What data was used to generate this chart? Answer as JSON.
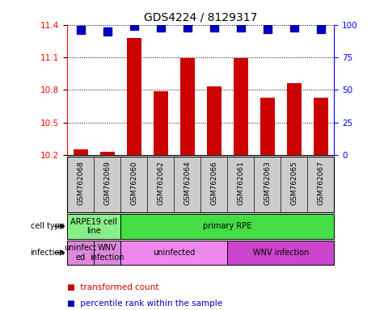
{
  "title": "GDS4224 / 8129317",
  "samples": [
    "GSM762068",
    "GSM762069",
    "GSM762060",
    "GSM762062",
    "GSM762064",
    "GSM762066",
    "GSM762061",
    "GSM762063",
    "GSM762065",
    "GSM762067"
  ],
  "transformed_count": [
    10.25,
    10.23,
    11.28,
    10.79,
    11.09,
    10.83,
    11.09,
    10.73,
    10.86,
    10.73
  ],
  "percentile_rank": [
    96,
    95,
    99,
    98,
    98,
    98,
    98,
    97,
    98,
    97
  ],
  "ylim": [
    10.2,
    11.4
  ],
  "yticks": [
    10.2,
    10.5,
    10.8,
    11.1,
    11.4
  ],
  "right_yticks": [
    0,
    25,
    50,
    75,
    100
  ],
  "right_ylim": [
    0,
    100
  ],
  "bar_color": "#cc0000",
  "dot_color": "#0000bb",
  "cell_type_spans": [
    {
      "label": "ARPE19 cell\nline",
      "start": 0,
      "end": 2,
      "color": "#88ee88"
    },
    {
      "label": "primary RPE",
      "start": 2,
      "end": 10,
      "color": "#44dd44"
    }
  ],
  "infection_spans": [
    {
      "label": "uninfect\ned",
      "start": 0,
      "end": 1,
      "color": "#dd88dd"
    },
    {
      "label": "WNV\ninfection",
      "start": 1,
      "end": 2,
      "color": "#dd88dd"
    },
    {
      "label": "uninfected",
      "start": 2,
      "end": 6,
      "color": "#ee88ee"
    },
    {
      "label": "WNV infection",
      "start": 6,
      "end": 10,
      "color": "#cc44cc"
    }
  ],
  "bar_width": 0.55,
  "dot_size": 50,
  "sample_bg": "#cccccc",
  "fig_w": 4.75,
  "fig_h": 3.84,
  "dpi": 100
}
